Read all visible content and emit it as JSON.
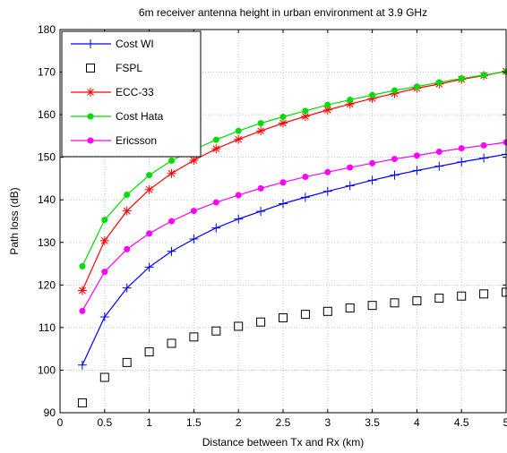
{
  "chart_data": {
    "type": "line",
    "title": "6m receiver antenna height in urban environment at 3.9 GHz",
    "xlabel": "Distance between Tx and Rx (km)",
    "ylabel": "Path loss (dB)",
    "xlim": [
      0,
      5
    ],
    "ylim": [
      90,
      180
    ],
    "xticks": [
      "0",
      "0.5",
      "1",
      "1.5",
      "2",
      "2.5",
      "3",
      "3.5",
      "4",
      "4.5",
      "5"
    ],
    "yticks": [
      "90",
      "100",
      "110",
      "120",
      "130",
      "140",
      "150",
      "160",
      "170",
      "180"
    ],
    "grid": true,
    "legend_position": "top-left",
    "x": [
      0.25,
      0.5,
      0.75,
      1.0,
      1.25,
      1.5,
      1.75,
      2.0,
      2.25,
      2.5,
      2.75,
      3.0,
      3.25,
      3.5,
      3.75,
      4.0,
      4.25,
      4.5,
      4.75,
      5.0
    ],
    "series": [
      {
        "name": "Cost WI",
        "color": "#0000ff",
        "marker": "plus",
        "line": true,
        "values": [
          101.2,
          112.5,
          119.3,
          124.2,
          127.9,
          130.8,
          133.4,
          135.5,
          137.3,
          139.1,
          140.6,
          142.0,
          143.3,
          144.6,
          145.8,
          146.9,
          147.9,
          148.9,
          149.8,
          150.7
        ]
      },
      {
        "name": "FSPL",
        "color": "#000000",
        "marker": "square",
        "line": false,
        "values": [
          92.3,
          98.3,
          101.8,
          104.3,
          106.3,
          107.8,
          109.2,
          110.3,
          111.3,
          112.3,
          113.1,
          113.8,
          114.6,
          115.2,
          115.8,
          116.3,
          116.9,
          117.4,
          117.9,
          118.3
        ]
      },
      {
        "name": "ECC-33",
        "color": "#ff0000",
        "marker": "star",
        "line": true,
        "values": [
          118.7,
          130.4,
          137.4,
          142.4,
          146.2,
          149.3,
          152.0,
          154.2,
          156.2,
          158.0,
          159.6,
          161.1,
          162.5,
          163.8,
          165.0,
          166.2,
          167.2,
          168.3,
          169.2,
          170.2
        ]
      },
      {
        "name": "Cost Hata",
        "color": "#00dd00",
        "marker": "dot",
        "line": true,
        "values": [
          124.4,
          135.3,
          141.2,
          145.8,
          149.2,
          151.8,
          154.1,
          156.2,
          158.0,
          159.5,
          160.9,
          162.3,
          163.5,
          164.6,
          165.7,
          166.6,
          167.6,
          168.5,
          169.3,
          170.1
        ]
      },
      {
        "name": "Ericsson",
        "color": "#ff00ff",
        "marker": "dot",
        "line": true,
        "values": [
          113.9,
          123.1,
          128.4,
          132.1,
          135.0,
          137.4,
          139.4,
          141.1,
          142.7,
          144.1,
          145.4,
          146.5,
          147.6,
          148.6,
          149.6,
          150.4,
          151.3,
          152.1,
          152.8,
          153.5
        ]
      }
    ]
  }
}
